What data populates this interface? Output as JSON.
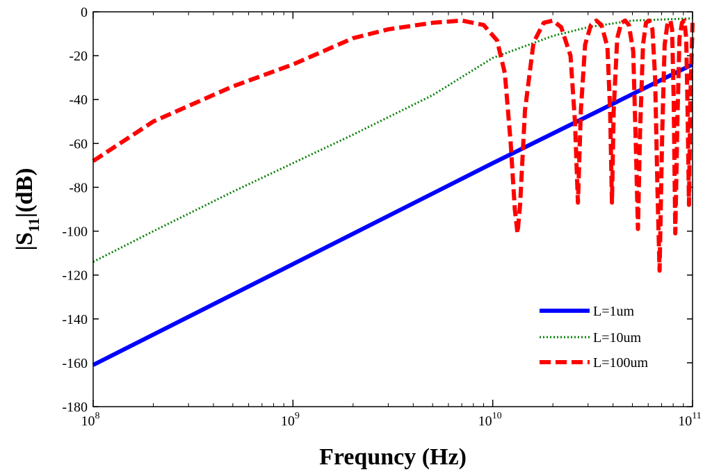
{
  "chart_data": {
    "type": "line",
    "xscale": "log",
    "xlabel": "Frequncy (Hz)",
    "ylabel_main": "|S",
    "ylabel_sub": "11",
    "ylabel_tail": "|(dB)",
    "xlim": [
      100000000,
      100000000000
    ],
    "ylim": [
      -180,
      0
    ],
    "y_ticks": [
      0,
      -20,
      -40,
      -60,
      -80,
      -100,
      -120,
      -140,
      -160,
      -180
    ],
    "x_ticks": [
      {
        "value": 100000000,
        "base": "10",
        "exp": "8"
      },
      {
        "value": 1000000000,
        "base": "10",
        "exp": "9"
      },
      {
        "value": 10000000000,
        "base": "10",
        "exp": "10"
      },
      {
        "value": 100000000000,
        "base": "10",
        "exp": "11"
      }
    ],
    "legend_position": "bottom-right",
    "series": [
      {
        "name": "L=1um",
        "color": "#0000ff",
        "style": "solid",
        "x": [
          100000000,
          1000000000,
          10000000000,
          100000000000
        ],
        "y": [
          -161,
          -115,
          -69,
          -24
        ]
      },
      {
        "name": "L=10um",
        "color": "#008000",
        "style": "dotted",
        "x": [
          100000000,
          200000000,
          500000000,
          1000000000,
          2000000000,
          5000000000,
          10000000000,
          20000000000,
          30000000000,
          50000000000,
          100000000000
        ],
        "y": [
          -114,
          -100,
          -82,
          -69,
          -56,
          -38,
          -21,
          -11,
          -7,
          -4,
          -3
        ]
      },
      {
        "name": "L=100um",
        "color": "#ff0000",
        "style": "dashed",
        "x": [
          100000000,
          200000000,
          500000000,
          1000000000,
          2000000000,
          3000000000,
          5000000000,
          7000000000,
          9000000000,
          10500000000,
          11500000000,
          12300000000,
          12900000000,
          13300000000,
          13700000000,
          14500000000,
          16000000000,
          18000000000,
          20000000000,
          22000000000,
          24500000000,
          25800000000,
          26700000000,
          27600000000,
          29000000000,
          31000000000,
          33000000000,
          35000000000,
          37500000000,
          38700000000,
          39500000000,
          40300000000,
          42000000000,
          44000000000,
          46000000000,
          48000000000,
          50500000000,
          52000000000,
          53300000000,
          54600000000,
          56500000000,
          58500000000,
          60500000000,
          63000000000,
          65000000000,
          66700000000,
          68400000000,
          70500000000,
          72500000000,
          75000000000,
          77500000000,
          79000000000,
          80500000000,
          82000000000,
          84000000000,
          86000000000,
          88500000000,
          91000000000,
          93000000000,
          94500000000,
          96000000000,
          97500000000,
          100000000000
        ],
        "y": [
          -68,
          -50,
          -34,
          -24,
          -12,
          -8,
          -5,
          -4,
          -6,
          -13,
          -28,
          -60,
          -90,
          -101,
          -88,
          -45,
          -14,
          -5,
          -4,
          -7,
          -20,
          -50,
          -87,
          -45,
          -15,
          -6,
          -4,
          -6,
          -16,
          -45,
          -87,
          -45,
          -12,
          -5,
          -4,
          -6,
          -18,
          -60,
          -99,
          -55,
          -15,
          -5,
          -4,
          -8,
          -30,
          -80,
          -118,
          -55,
          -15,
          -5,
          -4,
          -8,
          -40,
          -101,
          -50,
          -12,
          -5,
          -4,
          -12,
          -45,
          -88,
          -40,
          -5
        ]
      }
    ]
  }
}
